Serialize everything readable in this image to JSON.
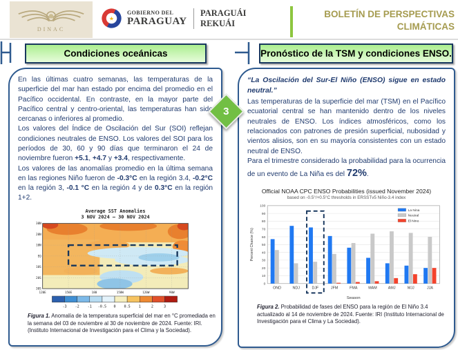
{
  "header": {
    "dinac": {
      "label": "DINAC",
      "wings_icon": "winged-emblem"
    },
    "government": {
      "line1": "GOBIERNO DEL",
      "line2": "PARAGUAY",
      "line3": "PARAGUÁI",
      "line4": "REKUÁI",
      "emblem_icon": "paraguay-roundel"
    },
    "bulletin_title": {
      "line1": "BOLETÍN DE PERSPECTIVAS",
      "line2": "CLIMÁTICAS"
    }
  },
  "connector": {
    "step_number": "3"
  },
  "left_panel": {
    "title": "Condiciones oceánicas",
    "p1": "En las últimas cuatro semanas, las temperaturas de la superficie del mar han estado por encima del promedio en el Pacífico occidental. En contraste, en la mayor parte del Pacífico central y centro-oriental, las temperaturas han sido cercanas o inferiores al promedio.",
    "p2_rich": [
      {
        "t": "Los valores del Índice de Oscilación del Sur (SOI) reflejan condiciones neutrales de ENSO. Los valores del SOI para los períodos de 30, 60 y 90 días que terminaron el 24 de noviembre fueron "
      },
      {
        "t": "+5.1",
        "b": true
      },
      {
        "t": ", "
      },
      {
        "t": "+4.7",
        "b": true
      },
      {
        "t": " y "
      },
      {
        "t": "+3.4",
        "b": true
      },
      {
        "t": ", respectivamente."
      }
    ],
    "p3_rich": [
      {
        "t": " Los valores de las anomalías promedio en la última semana en las regiones Niño fueron de "
      },
      {
        "t": "-0.3°C",
        "b": true
      },
      {
        "t": " en la región 3.4, "
      },
      {
        "t": "-0.2°C",
        "b": true
      },
      {
        "t": " en la región 3, "
      },
      {
        "t": "-0.1 °C",
        "b": true
      },
      {
        "t": " en la región 4 y de "
      },
      {
        "t": "0.3°C",
        "b": true
      },
      {
        "t": " en la región 1+2."
      }
    ]
  },
  "figure1": {
    "title_line1": "Average SST Anomalies",
    "title_line2": "3 NOV 2024  –  30 NOV 2024",
    "y_ticks": [
      "30N",
      "20N",
      "10N",
      "EQ",
      "10S",
      "20S",
      "30S"
    ],
    "x_ticks": [
      "120E",
      "150E",
      "180",
      "150W",
      "120W",
      "90W"
    ],
    "colorbar_labels": [
      "-3",
      "-2",
      "-1",
      "-0.5",
      "0",
      "0.5",
      "1",
      "2",
      "3"
    ],
    "colorbar_colors": [
      "#2b5fae",
      "#3f8fd4",
      "#7cb9e8",
      "#b8dcf2",
      "#e4f3fb",
      "#f6efc0",
      "#f6c360",
      "#ee8a33",
      "#e1502a",
      "#b01c12"
    ],
    "caption_rich": [
      {
        "t": "Figura 1.",
        "b": true,
        "i": true
      },
      {
        "t": " Anomalía de la temperatura superficial del mar en °C promediada en la semana del 03 de noviembre al 30 de noviembre de 2024. Fuente: IRI. (Instituto Internacional de Investigación para el Clima y la Sociedad)."
      }
    ]
  },
  "right_panel": {
    "title": "Pronóstico de la TSM y condiciones ENSO.",
    "quote": "“La Oscilación del Sur-El Niño (ENSO) sigue en estado neutral.”",
    "p1": "Las temperaturas de la superficie del mar (TSM) en el Pacífico ecuatorial central se han mantenido dentro de los niveles neutrales de ENSO. Los índices atmosféricos, como los relacionados con patrones de presión superficial, nubosidad y vientos alisios, son en su mayoría consistentes con un estado neutral de ENSO.",
    "p2_rich": [
      {
        "t": "Para el trimestre considerado la probabilidad para la ocurrencia de un evento de La Niña es del "
      },
      {
        "t": "72%",
        "b": true,
        "cls": "big"
      },
      {
        "t": "."
      }
    ]
  },
  "chart_data": {
    "type": "bar",
    "title": "Official NOAA CPC ENSO Probabilities (issued November 2024)",
    "subtitle": "based on -0.5°/+0.5°C thresholds in ERSSTv5 Niño-3.4 index",
    "categories": [
      "OND",
      "NDJ",
      "DJF",
      "JFM",
      "FMA",
      "MAM",
      "AMJ",
      "MJJ",
      "JJA"
    ],
    "series": [
      {
        "name": "La Nina",
        "color": "#2079f2",
        "values": [
          57,
          74,
          72,
          61,
          46,
          33,
          26,
          23,
          20
        ]
      },
      {
        "name": "Neutral",
        "color": "#c9c9c9",
        "values": [
          43,
          26,
          28,
          38,
          52,
          64,
          67,
          65,
          60
        ]
      },
      {
        "name": "El Nino",
        "color": "#f4432c",
        "values": [
          0,
          0,
          0,
          1,
          2,
          3,
          7,
          12,
          20
        ]
      }
    ],
    "xlabel": "Season",
    "ylabel": "Percent Chance (%)",
    "ylim": [
      0,
      100
    ],
    "grid": true,
    "legend_position": "top-right",
    "highlight_category": "DJF",
    "highlight_color": "#17365d",
    "caption_rich": [
      {
        "t": "Figura 2.",
        "b": true,
        "i": true
      },
      {
        "t": " Probabilidad de fases del ENSO para la región de El Niño 3.4 actualizado al 14 de noviembre de 2024. Fuente: IRI (Instituto Internacional de Investigación para el Clima y La Sociedad)."
      }
    ]
  },
  "colors": {
    "accent_green": "#8dc63f",
    "title_box_green": "#abee8f",
    "panel_border_blue": "#2e5a8f",
    "title_border_navy": "#17375e",
    "body_text_navy": "#1f3a6e",
    "bulletin_gold": "#a59b4f",
    "diamond_green": "#72bf44"
  }
}
